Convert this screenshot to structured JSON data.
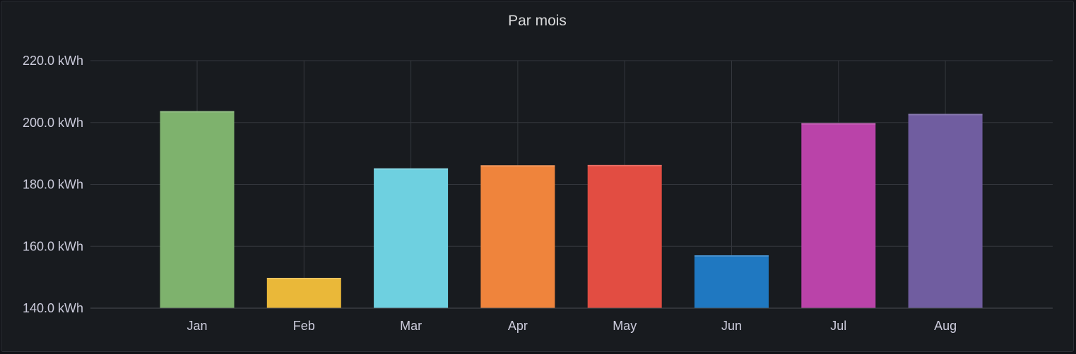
{
  "panel": {
    "title": "Par mois"
  },
  "chart_data": {
    "type": "bar",
    "title": "Par mois",
    "categories": [
      "Jan",
      "Feb",
      "Mar",
      "Apr",
      "May",
      "Jun",
      "Jul",
      "Aug"
    ],
    "values": [
      203.7,
      149.8,
      185.2,
      186.2,
      186.3,
      157.1,
      199.8,
      202.8
    ],
    "unit": "kWh",
    "ylim": [
      140,
      220
    ],
    "yticks": [
      140,
      160,
      180,
      200,
      220
    ],
    "ytick_labels": [
      "140.0 kWh",
      "160.0 kWh",
      "180.0 kWh",
      "200.0 kWh",
      "220.0 kWh"
    ],
    "colors": [
      "#7eb26d",
      "#eab839",
      "#6ed0e0",
      "#ef843c",
      "#e24d42",
      "#1f78c1",
      "#ba43a9",
      "#705da0"
    ],
    "grid": true,
    "legend": "none"
  }
}
